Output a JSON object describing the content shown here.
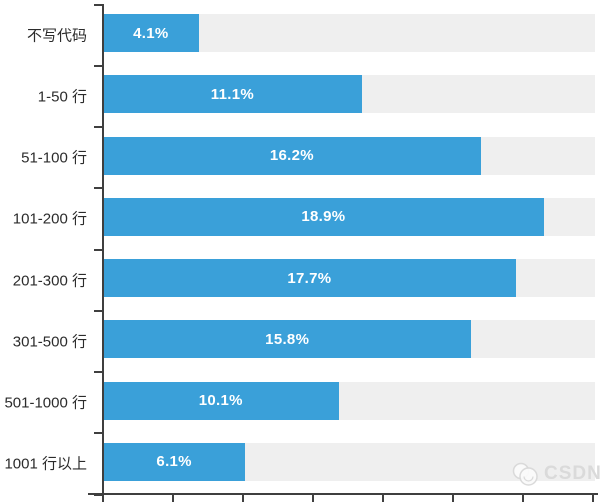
{
  "chart_data": {
    "type": "bar",
    "orientation": "horizontal",
    "title": "",
    "xlabel": "",
    "ylabel": "",
    "categories": [
      "不写代码",
      "1-50 行",
      "51-100 行",
      "101-200 行",
      "201-300 行",
      "301-500 行",
      "501-1000 行",
      "1001 行以上"
    ],
    "values": [
      4.1,
      11.1,
      16.2,
      18.9,
      17.7,
      15.8,
      10.1,
      6.1
    ],
    "value_labels": [
      "4.1%",
      "11.1%",
      "16.2%",
      "18.9%",
      "17.7%",
      "15.8%",
      "10.1%",
      "6.1%"
    ],
    "xlim": [
      0,
      21.1
    ],
    "xticks": [
      0,
      3,
      6,
      9,
      12,
      15,
      18,
      21
    ],
    "xtick_labels_shown": false,
    "ytick_count": 9,
    "grid": false,
    "legend": "none",
    "colors": {
      "bar": "#3aa0d9",
      "track": "#efefef",
      "axis": "#3f3f3f",
      "category_label": "#2b2b2b",
      "value_label": "#ffffff"
    }
  },
  "watermark": {
    "label": "CSDN"
  }
}
